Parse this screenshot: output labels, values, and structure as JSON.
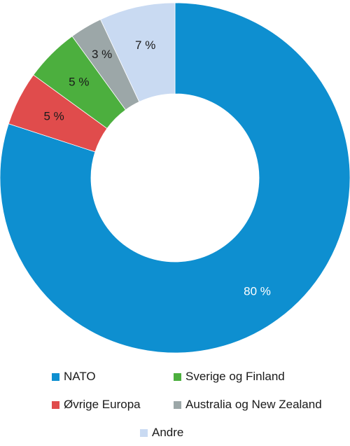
{
  "chart_data": {
    "type": "pie",
    "donut": true,
    "labels": [
      "NATO",
      "Øvrige Europa",
      "Sverige og Finland",
      "Australia og New Zealand",
      "Andre"
    ],
    "values": [
      80,
      5,
      5,
      3,
      7
    ],
    "value_labels": [
      "80 %",
      "5 %",
      "5 %",
      "3 %",
      "7 %"
    ],
    "colors": [
      "#0e8fd0",
      "#e04c4c",
      "#4caf3e",
      "#9ca7a8",
      "#c9daf2"
    ],
    "label_colors": [
      "#ffffff",
      "#1a1a1a",
      "#1a1a1a",
      "#1a1a1a",
      "#1a1a1a"
    ],
    "start": "12 o'clock",
    "direction": "clockwise",
    "legend_position": "bottom"
  },
  "legend": {
    "items": [
      {
        "label": "NATO",
        "color": "#0e8fd0"
      },
      {
        "label": "Sverige og Finland",
        "color": "#4caf3e"
      },
      {
        "label": "Øvrige Europa",
        "color": "#e04c4c"
      },
      {
        "label": "Australia og New Zealand",
        "color": "#9ca7a8"
      },
      {
        "label": "Andre",
        "color": "#c9daf2"
      }
    ]
  }
}
